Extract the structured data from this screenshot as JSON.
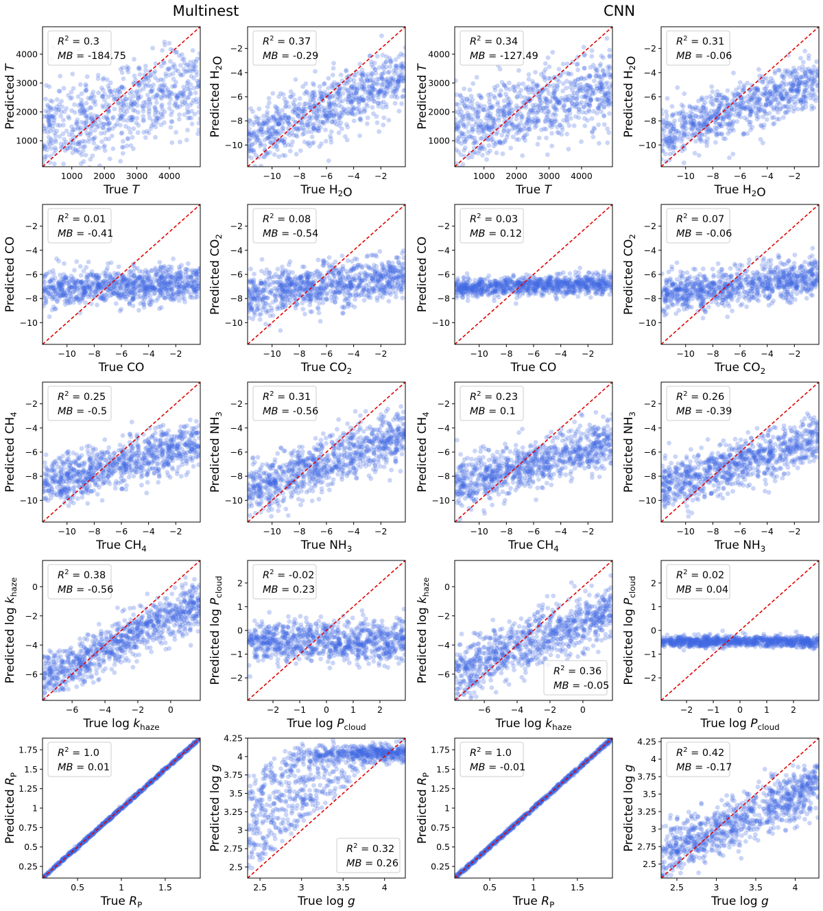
{
  "figure": {
    "column_titles": [
      "Multinest",
      "CNN"
    ],
    "axis_color": "#000000",
    "point_color": "#4169e1",
    "line_color": "#e00000"
  },
  "chart_data": [
    {
      "id": "mn-T",
      "type": "scatter",
      "row": 0,
      "col": 0,
      "xlim": [
        100,
        4950
      ],
      "ylim": [
        100,
        4950
      ],
      "xticks": [
        1000,
        2000,
        3000,
        4000
      ],
      "yticks": [
        1000,
        2000,
        3000,
        4000
      ],
      "xlabel": "True T",
      "ylabel": "Predicted T",
      "xlabel_parts": [
        [
          "True ",
          "n"
        ],
        [
          "T",
          "i"
        ]
      ],
      "ylabel_parts": [
        [
          "Predicted ",
          "n"
        ],
        [
          "T",
          "i"
        ]
      ],
      "annotation": {
        "r2": "0.3",
        "mb": "-184.75",
        "position": "top-left"
      },
      "point_model": "trend",
      "n_points": 700,
      "slope": 0.35,
      "noise": 800,
      "seed": 11
    },
    {
      "id": "mn-H2O",
      "type": "scatter",
      "row": 0,
      "col": 1,
      "xlim": [
        -11.8,
        -0.2
      ],
      "ylim": [
        -11.8,
        -0.2
      ],
      "xticks": [
        -10,
        -8,
        -6,
        -4,
        -2
      ],
      "yticks": [
        -10,
        -8,
        -6,
        -4,
        -2
      ],
      "xlabel": "True H2O",
      "ylabel": "Predicted H2O",
      "xlabel_parts": [
        [
          "True H",
          "n"
        ],
        [
          "2",
          "s"
        ],
        [
          "O",
          "n"
        ]
      ],
      "ylabel_parts": [
        [
          "Predicted H",
          "n"
        ],
        [
          "2",
          "s"
        ],
        [
          "O",
          "n"
        ]
      ],
      "annotation": {
        "r2": "0.37",
        "mb": "-0.29",
        "position": "top-left"
      },
      "point_model": "trend",
      "n_points": 800,
      "slope": 0.45,
      "noise": 1.3,
      "seed": 12
    },
    {
      "id": "cnn-T",
      "type": "scatter",
      "row": 0,
      "col": 2,
      "xlim": [
        100,
        4950
      ],
      "ylim": [
        100,
        4950
      ],
      "xticks": [
        1000,
        2000,
        3000,
        4000
      ],
      "yticks": [
        1000,
        2000,
        3000,
        4000
      ],
      "xlabel": "True T",
      "ylabel": "Predicted T",
      "xlabel_parts": [
        [
          "True ",
          "n"
        ],
        [
          "T",
          "i"
        ]
      ],
      "ylabel_parts": [
        [
          "Predicted ",
          "n"
        ],
        [
          "T",
          "i"
        ]
      ],
      "annotation": {
        "r2": "0.34",
        "mb": "-127.49",
        "position": "top-left"
      },
      "point_model": "trend",
      "n_points": 800,
      "slope": 0.3,
      "noise": 650,
      "seed": 13
    },
    {
      "id": "cnn-H2O",
      "type": "scatter",
      "row": 0,
      "col": 3,
      "xlim": [
        -11.8,
        -0.2
      ],
      "ylim": [
        -11.8,
        -0.2
      ],
      "xticks": [
        -10,
        -8,
        -6,
        -4,
        -2
      ],
      "yticks": [
        -10,
        -8,
        -6,
        -4,
        -2
      ],
      "xlabel": "True H2O",
      "ylabel": "Predicted H2O",
      "xlabel_parts": [
        [
          "True H",
          "n"
        ],
        [
          "2",
          "s"
        ],
        [
          "O",
          "n"
        ]
      ],
      "ylabel_parts": [
        [
          "Predicted H",
          "n"
        ],
        [
          "2",
          "s"
        ],
        [
          "O",
          "n"
        ]
      ],
      "annotation": {
        "r2": "0.31",
        "mb": "-0.06",
        "position": "top-left"
      },
      "point_model": "trend",
      "n_points": 800,
      "slope": 0.4,
      "noise": 1.1,
      "seed": 14
    },
    {
      "id": "mn-CO",
      "type": "scatter",
      "row": 1,
      "col": 0,
      "xlim": [
        -11.8,
        -0.2
      ],
      "ylim": [
        -11.8,
        -0.2
      ],
      "xticks": [
        -10,
        -8,
        -6,
        -4,
        -2
      ],
      "yticks": [
        -10,
        -8,
        -6,
        -4,
        -2
      ],
      "xlabel": "True CO",
      "ylabel": "Predicted CO",
      "xlabel_parts": [
        [
          "True CO",
          "n"
        ]
      ],
      "ylabel_parts": [
        [
          "Predicted CO",
          "n"
        ]
      ],
      "annotation": {
        "r2": "0.01",
        "mb": "-0.41",
        "position": "top-left"
      },
      "point_model": "trend",
      "n_points": 900,
      "slope": 0.05,
      "noise": 0.75,
      "seed": 21
    },
    {
      "id": "mn-CO2",
      "type": "scatter",
      "row": 1,
      "col": 1,
      "xlim": [
        -11.8,
        -0.2
      ],
      "ylim": [
        -11.8,
        -0.2
      ],
      "xticks": [
        -10,
        -8,
        -6,
        -4,
        -2
      ],
      "yticks": [
        -10,
        -8,
        -6,
        -4,
        -2
      ],
      "xlabel": "True CO2",
      "ylabel": "Predicted CO2",
      "xlabel_parts": [
        [
          "True CO",
          "n"
        ],
        [
          "2",
          "s"
        ]
      ],
      "ylabel_parts": [
        [
          "Predicted CO",
          "n"
        ],
        [
          "2",
          "s"
        ]
      ],
      "annotation": {
        "r2": "0.08",
        "mb": "-0.54",
        "position": "top-left"
      },
      "point_model": "trend",
      "n_points": 900,
      "slope": 0.15,
      "noise": 0.9,
      "seed": 22
    },
    {
      "id": "cnn-CO",
      "type": "scatter",
      "row": 1,
      "col": 2,
      "xlim": [
        -11.8,
        -0.2
      ],
      "ylim": [
        -11.8,
        -0.2
      ],
      "xticks": [
        -10,
        -8,
        -6,
        -4,
        -2
      ],
      "yticks": [
        -10,
        -8,
        -6,
        -4,
        -2
      ],
      "xlabel": "True CO",
      "ylabel": "Predicted CO",
      "xlabel_parts": [
        [
          "True CO",
          "n"
        ]
      ],
      "ylabel_parts": [
        [
          "Predicted CO",
          "n"
        ]
      ],
      "annotation": {
        "r2": "0.03",
        "mb": "0.12",
        "position": "top-left"
      },
      "point_model": "trend",
      "n_points": 900,
      "slope": 0.03,
      "noise": 0.4,
      "seed": 23
    },
    {
      "id": "cnn-CO2",
      "type": "scatter",
      "row": 1,
      "col": 3,
      "xlim": [
        -11.8,
        -0.2
      ],
      "ylim": [
        -11.8,
        -0.2
      ],
      "xticks": [
        -10,
        -8,
        -6,
        -4,
        -2
      ],
      "yticks": [
        -10,
        -8,
        -6,
        -4,
        -2
      ],
      "xlabel": "True CO2",
      "ylabel": "Predicted CO2",
      "xlabel_parts": [
        [
          "True CO",
          "n"
        ],
        [
          "2",
          "s"
        ]
      ],
      "ylabel_parts": [
        [
          "Predicted CO",
          "n"
        ],
        [
          "2",
          "s"
        ]
      ],
      "annotation": {
        "r2": "0.07",
        "mb": "-0.06",
        "position": "top-left"
      },
      "point_model": "trend",
      "n_points": 900,
      "slope": 0.12,
      "noise": 0.8,
      "seed": 24
    },
    {
      "id": "mn-CH4",
      "type": "scatter",
      "row": 2,
      "col": 0,
      "xlim": [
        -11.8,
        -0.2
      ],
      "ylim": [
        -11.8,
        -0.2
      ],
      "xticks": [
        -10,
        -8,
        -6,
        -4,
        -2
      ],
      "yticks": [
        -10,
        -8,
        -6,
        -4,
        -2
      ],
      "xlabel": "True CH4",
      "ylabel": "Predicted CH4",
      "xlabel_parts": [
        [
          "True CH",
          "n"
        ],
        [
          "4",
          "s"
        ]
      ],
      "ylabel_parts": [
        [
          "Predicted CH",
          "n"
        ],
        [
          "4",
          "s"
        ]
      ],
      "annotation": {
        "r2": "0.25",
        "mb": "-0.5",
        "position": "top-left"
      },
      "point_model": "trend",
      "n_points": 900,
      "slope": 0.3,
      "noise": 1.0,
      "seed": 31
    },
    {
      "id": "mn-NH3",
      "type": "scatter",
      "row": 2,
      "col": 1,
      "xlim": [
        -11.8,
        -0.2
      ],
      "ylim": [
        -11.8,
        -0.2
      ],
      "xticks": [
        -10,
        -8,
        -6,
        -4,
        -2
      ],
      "yticks": [
        -10,
        -8,
        -6,
        -4,
        -2
      ],
      "xlabel": "True NH3",
      "ylabel": "Predicted NH3",
      "xlabel_parts": [
        [
          "True NH",
          "n"
        ],
        [
          "3",
          "s"
        ]
      ],
      "ylabel_parts": [
        [
          "Predicted NH",
          "n"
        ],
        [
          "3",
          "s"
        ]
      ],
      "annotation": {
        "r2": "0.31",
        "mb": "-0.56",
        "position": "top-left"
      },
      "point_model": "trend",
      "n_points": 900,
      "slope": 0.4,
      "noise": 1.1,
      "seed": 32
    },
    {
      "id": "cnn-CH4",
      "type": "scatter",
      "row": 2,
      "col": 2,
      "xlim": [
        -11.8,
        -0.2
      ],
      "ylim": [
        -11.8,
        -0.2
      ],
      "xticks": [
        -10,
        -8,
        -6,
        -4,
        -2
      ],
      "yticks": [
        -10,
        -8,
        -6,
        -4,
        -2
      ],
      "xlabel": "True CH4",
      "ylabel": "Predicted CH4",
      "xlabel_parts": [
        [
          "True CH",
          "n"
        ],
        [
          "4",
          "s"
        ]
      ],
      "ylabel_parts": [
        [
          "Predicted CH",
          "n"
        ],
        [
          "4",
          "s"
        ]
      ],
      "annotation": {
        "r2": "0.23",
        "mb": "0.1",
        "position": "top-left"
      },
      "point_model": "trend",
      "n_points": 900,
      "slope": 0.3,
      "noise": 1.0,
      "seed": 33
    },
    {
      "id": "cnn-NH3",
      "type": "scatter",
      "row": 2,
      "col": 3,
      "xlim": [
        -11.8,
        -0.2
      ],
      "ylim": [
        -11.8,
        -0.2
      ],
      "xticks": [
        -10,
        -8,
        -6,
        -4,
        -2
      ],
      "yticks": [
        -10,
        -8,
        -6,
        -4,
        -2
      ],
      "xlabel": "True NH3",
      "ylabel": "Predicted NH3",
      "xlabel_parts": [
        [
          "True NH",
          "n"
        ],
        [
          "3",
          "s"
        ]
      ],
      "ylabel_parts": [
        [
          "Predicted NH",
          "n"
        ],
        [
          "3",
          "s"
        ]
      ],
      "annotation": {
        "r2": "0.26",
        "mb": "-0.39",
        "position": "top-left"
      },
      "point_model": "trend",
      "n_points": 900,
      "slope": 0.35,
      "noise": 1.0,
      "seed": 34
    },
    {
      "id": "mn-khaze",
      "type": "scatter",
      "row": 3,
      "col": 0,
      "xlim": [
        -7.8,
        1.8
      ],
      "ylim": [
        -7.8,
        1.8
      ],
      "xticks": [
        -6,
        -4,
        -2,
        0
      ],
      "yticks": [
        -6,
        -4,
        -2,
        0
      ],
      "xlabel": "True log k_haze",
      "ylabel": "Predicted log k_haze",
      "xlabel_parts": [
        [
          "True log ",
          "n"
        ],
        [
          "k",
          "i"
        ],
        [
          "haze",
          "s"
        ]
      ],
      "ylabel_parts": [
        [
          "Predicted log ",
          "n"
        ],
        [
          "k",
          "i"
        ],
        [
          "haze",
          "s"
        ]
      ],
      "annotation": {
        "r2": "0.38",
        "mb": "-0.56",
        "position": "top-left"
      },
      "point_model": "trend",
      "n_points": 900,
      "slope": 0.55,
      "noise": 0.8,
      "seed": 41
    },
    {
      "id": "mn-Pcloud",
      "type": "scatter",
      "row": 3,
      "col": 1,
      "xlim": [
        -2.95,
        2.95
      ],
      "ylim": [
        -2.95,
        2.95
      ],
      "xticks": [
        -2,
        -1,
        0,
        1,
        2
      ],
      "yticks": [
        -2,
        -1,
        0,
        1,
        2
      ],
      "xlabel": "True log P_cloud",
      "ylabel": "Predicted log P_cloud",
      "xlabel_parts": [
        [
          "True log ",
          "n"
        ],
        [
          "P",
          "i"
        ],
        [
          "cloud",
          "s"
        ]
      ],
      "ylabel_parts": [
        [
          "Predicted log ",
          "n"
        ],
        [
          "P",
          "i"
        ],
        [
          "cloud",
          "s"
        ]
      ],
      "annotation": {
        "r2": "-0.02",
        "mb": "0.23",
        "position": "top-left"
      },
      "point_model": "trend",
      "n_points": 900,
      "slope": 0.0,
      "noise": 0.45,
      "seed": 42
    },
    {
      "id": "cnn-khaze",
      "type": "scatter",
      "row": 3,
      "col": 2,
      "xlim": [
        -7.8,
        1.8
      ],
      "ylim": [
        -7.8,
        1.8
      ],
      "xticks": [
        -6,
        -4,
        -2,
        0
      ],
      "yticks": [
        -6,
        -4,
        -2,
        0
      ],
      "xlabel": "True log k_haze",
      "ylabel": "Predicted log k_haze",
      "xlabel_parts": [
        [
          "True log ",
          "n"
        ],
        [
          "k",
          "i"
        ],
        [
          "haze",
          "s"
        ]
      ],
      "ylabel_parts": [
        [
          "Predicted log ",
          "n"
        ],
        [
          "k",
          "i"
        ],
        [
          "haze",
          "s"
        ]
      ],
      "annotation": {
        "r2": "0.36",
        "mb": "-0.05",
        "position": "bottom-right"
      },
      "point_model": "trend",
      "n_points": 900,
      "slope": 0.45,
      "noise": 1.0,
      "seed": 43
    },
    {
      "id": "cnn-Pcloud",
      "type": "scatter",
      "row": 3,
      "col": 3,
      "xlim": [
        -2.95,
        2.95
      ],
      "ylim": [
        -2.95,
        2.95
      ],
      "xticks": [
        -2,
        -1,
        0,
        1,
        2
      ],
      "yticks": [
        -2,
        -1,
        0,
        1,
        2
      ],
      "xlabel": "True log P_cloud",
      "ylabel": "Predicted log P_cloud",
      "xlabel_parts": [
        [
          "True log ",
          "n"
        ],
        [
          "P",
          "i"
        ],
        [
          "cloud",
          "s"
        ]
      ],
      "ylabel_parts": [
        [
          "Predicted log ",
          "n"
        ],
        [
          "P",
          "i"
        ],
        [
          "cloud",
          "s"
        ]
      ],
      "annotation": {
        "r2": "0.02",
        "mb": "0.04",
        "position": "top-left"
      },
      "point_model": "trend",
      "n_points": 900,
      "slope": 0.0,
      "noise": 0.12,
      "seed": 44
    },
    {
      "id": "mn-Rp",
      "type": "scatter",
      "row": 4,
      "col": 0,
      "xlim": [
        0.1,
        1.9
      ],
      "ylim": [
        0.1,
        1.9
      ],
      "xticks": [
        0.5,
        1.0,
        1.5
      ],
      "yticks": [
        0.25,
        0.5,
        0.75,
        1.0,
        1.25,
        1.5,
        1.75
      ],
      "xlabel": "True R_P",
      "ylabel": "Predicted R_P",
      "xlabel_parts": [
        [
          "True ",
          "n"
        ],
        [
          "R",
          "i"
        ],
        [
          "P",
          "s"
        ]
      ],
      "ylabel_parts": [
        [
          "Predicted ",
          "n"
        ],
        [
          "R",
          "i"
        ],
        [
          "P",
          "s"
        ]
      ],
      "annotation": {
        "r2": "1.0",
        "mb": "0.01",
        "position": "top-left"
      },
      "point_model": "identity",
      "n_points": 800,
      "slope": 1.0,
      "noise": 0.01,
      "seed": 51
    },
    {
      "id": "mn-logg",
      "type": "scatter",
      "row": 4,
      "col": 1,
      "xlim": [
        2.35,
        4.25
      ],
      "ylim": [
        2.35,
        4.25
      ],
      "xticks": [
        2.5,
        3.0,
        3.5,
        4.0
      ],
      "yticks": [
        2.5,
        2.75,
        3.0,
        3.25,
        3.5,
        3.75,
        4.0,
        4.25
      ],
      "xlabel": "True log g",
      "ylabel": "Predicted log g",
      "xlabel_parts": [
        [
          "True log ",
          "n"
        ],
        [
          "g",
          "i"
        ]
      ],
      "ylabel_parts": [
        [
          "Predicted log ",
          "n"
        ],
        [
          "g",
          "i"
        ]
      ],
      "annotation": {
        "r2": "0.32",
        "mb": "0.26",
        "position": "bottom-right"
      },
      "point_model": "saturate",
      "n_points": 900,
      "slope": 1.0,
      "noise": 0.06,
      "seed": 52
    },
    {
      "id": "cnn-Rp",
      "type": "scatter",
      "row": 4,
      "col": 2,
      "xlim": [
        0.1,
        1.9
      ],
      "ylim": [
        0.1,
        1.9
      ],
      "xticks": [
        0.5,
        1.0,
        1.5
      ],
      "yticks": [
        0.25,
        0.5,
        0.75,
        1.0,
        1.25,
        1.5,
        1.75
      ],
      "xlabel": "True R_P",
      "ylabel": "Predicted R_P",
      "xlabel_parts": [
        [
          "True ",
          "n"
        ],
        [
          "R",
          "i"
        ],
        [
          "P",
          "s"
        ]
      ],
      "ylabel_parts": [
        [
          "Predicted ",
          "n"
        ],
        [
          "R",
          "i"
        ],
        [
          "P",
          "s"
        ]
      ],
      "annotation": {
        "r2": "1.0",
        "mb": "-0.01",
        "position": "top-left"
      },
      "point_model": "identity",
      "n_points": 800,
      "slope": 1.0,
      "noise": 0.012,
      "seed": 53
    },
    {
      "id": "cnn-logg",
      "type": "scatter",
      "row": 4,
      "col": 3,
      "xlim": [
        2.3,
        4.3
      ],
      "ylim": [
        2.3,
        4.3
      ],
      "xticks": [
        2.5,
        3.0,
        3.5,
        4.0
      ],
      "yticks": [
        2.5,
        2.75,
        3.0,
        3.25,
        3.5,
        3.75,
        4.0,
        4.25
      ],
      "xlabel": "True log g",
      "ylabel": "Predicted log g",
      "xlabel_parts": [
        [
          "True log ",
          "n"
        ],
        [
          "g",
          "i"
        ]
      ],
      "ylabel_parts": [
        [
          "Predicted log ",
          "n"
        ],
        [
          "g",
          "i"
        ]
      ],
      "annotation": {
        "r2": "0.42",
        "mb": "-0.17",
        "position": "top-left"
      },
      "point_model": "trend",
      "n_points": 900,
      "slope": 0.5,
      "noise": 0.2,
      "seed": 54
    }
  ]
}
